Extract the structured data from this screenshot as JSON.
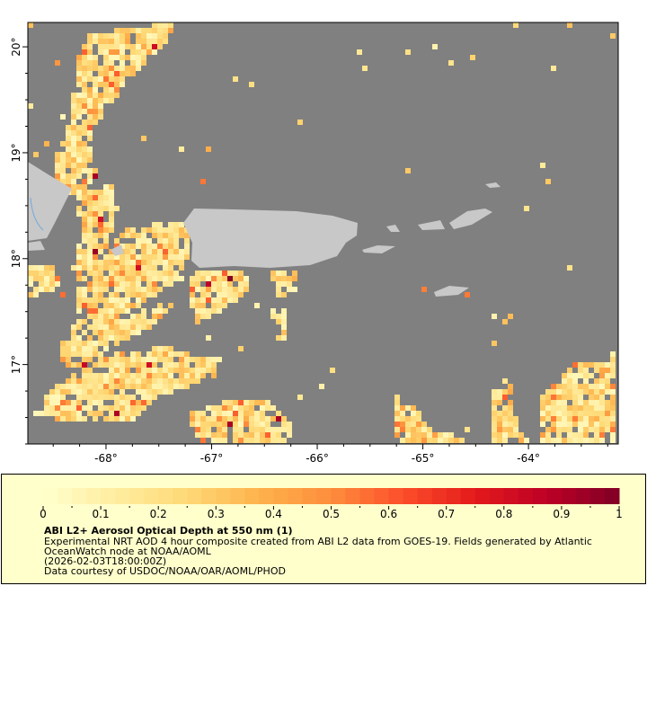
{
  "map": {
    "lon_range": [
      -68.74,
      -63.15
    ],
    "lat_range": [
      16.25,
      20.23
    ],
    "lon_ticks": [
      -68,
      -67,
      -66,
      -65,
      -64
    ],
    "lon_tick_labels": [
      "-68°",
      "-67°",
      "-66°",
      "-65°",
      "-64°"
    ],
    "lat_ticks": [
      20,
      19,
      18,
      17
    ],
    "lat_tick_labels": [
      "20°",
      "19°",
      "18°",
      "17°"
    ],
    "colors": {
      "ocean": "#808080",
      "land": "#c8c8c8",
      "river": "#6fa8dc",
      "frame": "#000000"
    }
  },
  "legend": {
    "colorbar": {
      "range": [
        0,
        1
      ],
      "tick_labels": [
        "0",
        "0.1",
        "0.2",
        "0.3",
        "0.4",
        "0.5",
        "0.6",
        "0.7",
        "0.8",
        "0.9",
        "1"
      ],
      "colormap": [
        "#ffffcc",
        "#ffeda0",
        "#fed976",
        "#feb24c",
        "#fd8d3c",
        "#fc4e2a",
        "#e31a1c",
        "#bd0026",
        "#800026"
      ]
    },
    "title": "ABI L2+ Aerosol Optical Depth at 550 nm (1)",
    "description_line1": "Experimental NRT AOD 4 hour composite created from ABI L2 data from GOES-19. Fields generated by Atlantic",
    "description_line2": "OceanWatch node at NOAA/AOML",
    "time": "(2026-02-03T18:00:00Z)",
    "credit": "Data courtesy of USDOC/NOAA/OAR/AOML/PHOD"
  }
}
